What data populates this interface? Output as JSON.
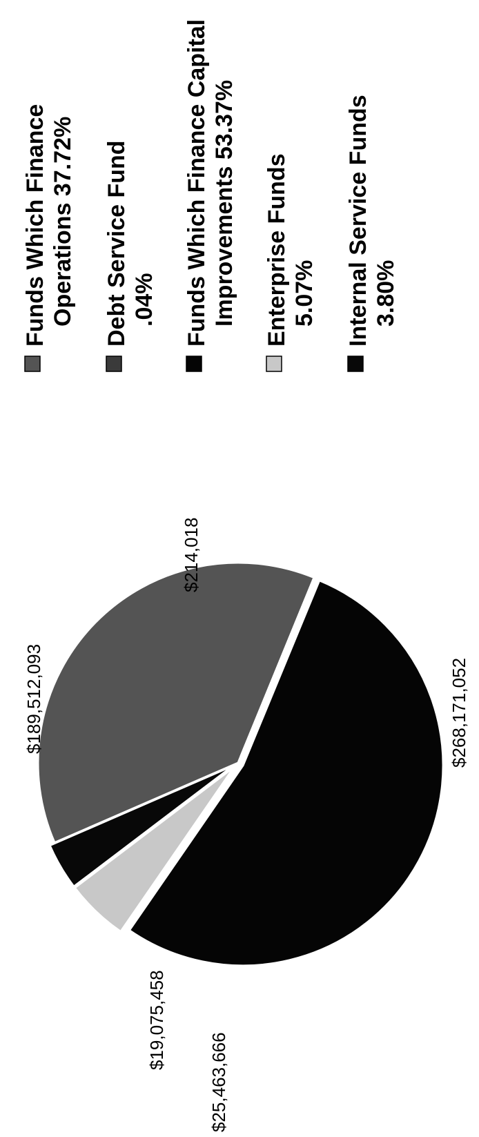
{
  "chart_data": {
    "type": "pie",
    "orientation": "rotated-90-clockwise",
    "categories": [
      "Funds Which Finance Operations",
      "Debt Service Fund",
      "Funds Which Finance Capital Improvements",
      "Enterprise Funds",
      "Internal Service Funds"
    ],
    "values": [
      189512093,
      214018,
      268171052,
      25463666,
      19075458
    ],
    "value_labels": [
      "$189,512,093",
      "$214,018",
      "$268,171,052",
      "$25,463,666",
      "$19,075,458"
    ],
    "legend": [
      {
        "line1": "Funds Which Finance",
        "line2": "Operations   37.72%",
        "color": "#545454"
      },
      {
        "line1": "Debt Service Fund",
        "line2": ".04%",
        "color": "#3a3a3a"
      },
      {
        "line1": "Funds Which Finance Capital",
        "line2": "Improvements   53.37%",
        "color": "#050505"
      },
      {
        "line1": "Enterprise Funds",
        "line2": "5.07%",
        "color": "#c8c8c8"
      },
      {
        "line1": "Internal Service Funds",
        "line2": "3.80%",
        "color": "#080808"
      }
    ],
    "legend_placement": "right",
    "title": ""
  }
}
